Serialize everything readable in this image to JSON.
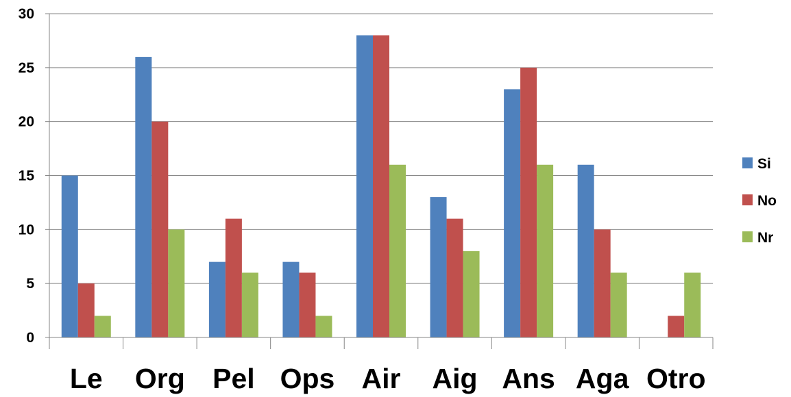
{
  "chart_data": {
    "type": "bar",
    "categories": [
      "Le",
      "Org",
      "Pel",
      "Ops",
      "Air",
      "Aig",
      "Ans",
      "Aga",
      "Otro"
    ],
    "series": [
      {
        "name": "Si",
        "color": "#4F81BD",
        "values": [
          15,
          26,
          7,
          7,
          28,
          13,
          23,
          16,
          0
        ]
      },
      {
        "name": "No",
        "color": "#C0504D",
        "values": [
          5,
          20,
          11,
          6,
          28,
          11,
          25,
          10,
          2
        ]
      },
      {
        "name": "Nr",
        "color": "#9BBB59",
        "values": [
          2,
          10,
          6,
          2,
          16,
          8,
          16,
          6,
          6
        ]
      }
    ],
    "title": "",
    "xlabel": "",
    "ylabel": "",
    "ylim": [
      0,
      30
    ],
    "yticks": [
      0,
      5,
      10,
      15,
      20,
      25,
      30
    ],
    "grid": true,
    "legend": "right"
  }
}
